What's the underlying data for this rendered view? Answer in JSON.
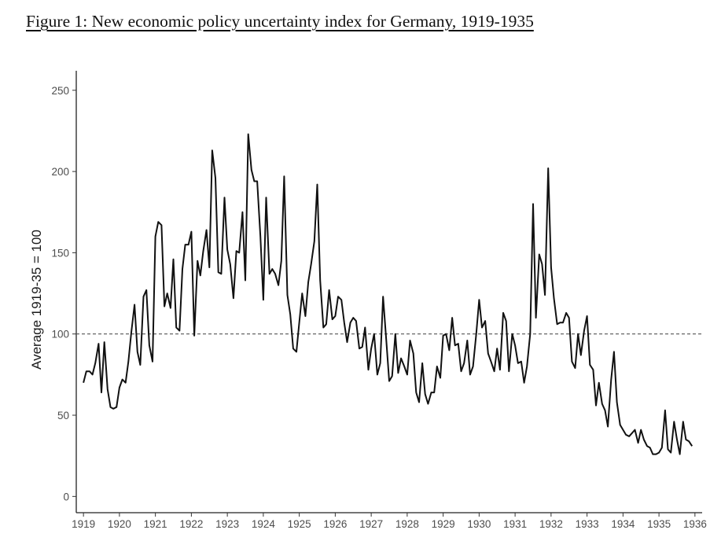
{
  "figure": {
    "title": "Figure 1: New economic policy uncertainty index for Germany, 1919-1935"
  },
  "chart_data": {
    "type": "line",
    "title": "Figure 1: New economic policy uncertainty index for Germany, 1919-1935",
    "xlabel": "",
    "ylabel": "Average 1919-35 = 100",
    "xlim": [
      1918.8,
      1936.2
    ],
    "ylim": [
      -10,
      262
    ],
    "x_ticks": [
      1919,
      1920,
      1921,
      1922,
      1923,
      1924,
      1925,
      1926,
      1927,
      1928,
      1929,
      1930,
      1931,
      1932,
      1933,
      1934,
      1935,
      1936
    ],
    "y_ticks": [
      0,
      50,
      100,
      150,
      200,
      250
    ],
    "grid": false,
    "reference_line": {
      "y": 100,
      "style": "dashed",
      "color": "#555555"
    },
    "line_color": "#111111",
    "series": [
      {
        "values": [
          [
            1919.0,
            70
          ],
          [
            1919.08,
            77
          ],
          [
            1919.17,
            77
          ],
          [
            1919.25,
            75
          ],
          [
            1919.33,
            82
          ],
          [
            1919.42,
            94
          ],
          [
            1919.5,
            64
          ],
          [
            1919.58,
            95
          ],
          [
            1919.67,
            66
          ],
          [
            1919.75,
            55
          ],
          [
            1919.83,
            54
          ],
          [
            1919.92,
            55
          ],
          [
            1920.0,
            67
          ],
          [
            1920.08,
            72
          ],
          [
            1920.17,
            70
          ],
          [
            1920.25,
            83
          ],
          [
            1920.33,
            101
          ],
          [
            1920.42,
            118
          ],
          [
            1920.5,
            89
          ],
          [
            1920.58,
            81
          ],
          [
            1920.67,
            123
          ],
          [
            1920.75,
            127
          ],
          [
            1920.83,
            93
          ],
          [
            1920.92,
            83
          ],
          [
            1921.0,
            160
          ],
          [
            1921.08,
            169
          ],
          [
            1921.17,
            167
          ],
          [
            1921.25,
            117
          ],
          [
            1921.33,
            125
          ],
          [
            1921.42,
            116
          ],
          [
            1921.5,
            146
          ],
          [
            1921.58,
            104
          ],
          [
            1921.67,
            102
          ],
          [
            1921.75,
            140
          ],
          [
            1921.83,
            155
          ],
          [
            1921.92,
            155
          ],
          [
            1922.0,
            163
          ],
          [
            1922.08,
            99
          ],
          [
            1922.17,
            145
          ],
          [
            1922.25,
            136
          ],
          [
            1922.33,
            151
          ],
          [
            1922.42,
            164
          ],
          [
            1922.5,
            141
          ],
          [
            1922.58,
            213
          ],
          [
            1922.67,
            196
          ],
          [
            1922.75,
            138
          ],
          [
            1922.83,
            137
          ],
          [
            1922.92,
            184
          ],
          [
            1923.0,
            152
          ],
          [
            1923.08,
            143
          ],
          [
            1923.17,
            122
          ],
          [
            1923.25,
            151
          ],
          [
            1923.33,
            150
          ],
          [
            1923.42,
            175
          ],
          [
            1923.5,
            133
          ],
          [
            1923.58,
            223
          ],
          [
            1923.67,
            201
          ],
          [
            1923.75,
            194
          ],
          [
            1923.83,
            194
          ],
          [
            1923.92,
            160
          ],
          [
            1924.0,
            121
          ],
          [
            1924.08,
            184
          ],
          [
            1924.17,
            137
          ],
          [
            1924.25,
            140
          ],
          [
            1924.33,
            137
          ],
          [
            1924.42,
            130
          ],
          [
            1924.5,
            145
          ],
          [
            1924.58,
            197
          ],
          [
            1924.67,
            124
          ],
          [
            1924.75,
            112
          ],
          [
            1924.83,
            91
          ],
          [
            1924.92,
            89
          ],
          [
            1925.0,
            107
          ],
          [
            1925.08,
            125
          ],
          [
            1925.17,
            111
          ],
          [
            1925.25,
            132
          ],
          [
            1925.33,
            143
          ],
          [
            1925.42,
            157
          ],
          [
            1925.5,
            192
          ],
          [
            1925.58,
            133
          ],
          [
            1925.67,
            104
          ],
          [
            1925.75,
            106
          ],
          [
            1925.83,
            127
          ],
          [
            1925.92,
            109
          ],
          [
            1926.0,
            111
          ],
          [
            1926.08,
            123
          ],
          [
            1926.17,
            121
          ],
          [
            1926.25,
            107
          ],
          [
            1926.33,
            95
          ],
          [
            1926.42,
            107
          ],
          [
            1926.5,
            110
          ],
          [
            1926.58,
            108
          ],
          [
            1926.67,
            91
          ],
          [
            1926.75,
            92
          ],
          [
            1926.83,
            104
          ],
          [
            1926.92,
            78
          ],
          [
            1927.0,
            91
          ],
          [
            1927.08,
            100
          ],
          [
            1927.17,
            75
          ],
          [
            1927.25,
            82
          ],
          [
            1927.33,
            123
          ],
          [
            1927.42,
            96
          ],
          [
            1927.5,
            71
          ],
          [
            1927.58,
            74
          ],
          [
            1927.67,
            100
          ],
          [
            1927.75,
            76
          ],
          [
            1927.83,
            85
          ],
          [
            1927.92,
            80
          ],
          [
            1928.0,
            75
          ],
          [
            1928.08,
            96
          ],
          [
            1928.17,
            88
          ],
          [
            1928.25,
            64
          ],
          [
            1928.33,
            58
          ],
          [
            1928.42,
            82
          ],
          [
            1928.5,
            63
          ],
          [
            1928.58,
            57
          ],
          [
            1928.67,
            64
          ],
          [
            1928.75,
            64
          ],
          [
            1928.83,
            80
          ],
          [
            1928.92,
            73
          ],
          [
            1929.0,
            99
          ],
          [
            1929.08,
            100
          ],
          [
            1929.17,
            90
          ],
          [
            1929.25,
            110
          ],
          [
            1929.33,
            93
          ],
          [
            1929.42,
            94
          ],
          [
            1929.5,
            77
          ],
          [
            1929.58,
            82
          ],
          [
            1929.67,
            96
          ],
          [
            1929.75,
            75
          ],
          [
            1929.83,
            80
          ],
          [
            1929.92,
            100
          ],
          [
            1930.0,
            121
          ],
          [
            1930.08,
            104
          ],
          [
            1930.17,
            108
          ],
          [
            1930.25,
            88
          ],
          [
            1930.33,
            83
          ],
          [
            1930.42,
            77
          ],
          [
            1930.5,
            91
          ],
          [
            1930.58,
            78
          ],
          [
            1930.67,
            113
          ],
          [
            1930.75,
            108
          ],
          [
            1930.83,
            77
          ],
          [
            1930.92,
            100
          ],
          [
            1931.0,
            93
          ],
          [
            1931.08,
            82
          ],
          [
            1931.17,
            83
          ],
          [
            1931.25,
            70
          ],
          [
            1931.33,
            80
          ],
          [
            1931.42,
            100
          ],
          [
            1931.5,
            180
          ],
          [
            1931.58,
            110
          ],
          [
            1931.67,
            149
          ],
          [
            1931.75,
            143
          ],
          [
            1931.83,
            124
          ],
          [
            1931.92,
            202
          ],
          [
            1932.0,
            141
          ],
          [
            1932.08,
            122
          ],
          [
            1932.17,
            106
          ],
          [
            1932.25,
            107
          ],
          [
            1932.33,
            107
          ],
          [
            1932.42,
            113
          ],
          [
            1932.5,
            110
          ],
          [
            1932.58,
            83
          ],
          [
            1932.67,
            79
          ],
          [
            1932.75,
            100
          ],
          [
            1932.83,
            87
          ],
          [
            1932.92,
            102
          ],
          [
            1933.0,
            111
          ],
          [
            1933.08,
            81
          ],
          [
            1933.17,
            78
          ],
          [
            1933.25,
            56
          ],
          [
            1933.33,
            70
          ],
          [
            1933.42,
            57
          ],
          [
            1933.5,
            53
          ],
          [
            1933.58,
            43
          ],
          [
            1933.67,
            72
          ],
          [
            1933.75,
            89
          ],
          [
            1933.83,
            58
          ],
          [
            1933.92,
            44
          ],
          [
            1934.0,
            41
          ],
          [
            1934.08,
            38
          ],
          [
            1934.17,
            37
          ],
          [
            1934.25,
            39
          ],
          [
            1934.33,
            41
          ],
          [
            1934.42,
            33
          ],
          [
            1934.5,
            41
          ],
          [
            1934.58,
            35
          ],
          [
            1934.67,
            31
          ],
          [
            1934.75,
            30
          ],
          [
            1934.83,
            26
          ],
          [
            1934.92,
            26
          ],
          [
            1935.0,
            27
          ],
          [
            1935.08,
            30
          ],
          [
            1935.17,
            53
          ],
          [
            1935.25,
            29
          ],
          [
            1935.33,
            27
          ],
          [
            1935.42,
            46
          ],
          [
            1935.5,
            35
          ],
          [
            1935.58,
            26
          ],
          [
            1935.67,
            46
          ],
          [
            1935.75,
            35
          ],
          [
            1935.83,
            34
          ],
          [
            1935.92,
            31
          ]
        ]
      }
    ]
  }
}
